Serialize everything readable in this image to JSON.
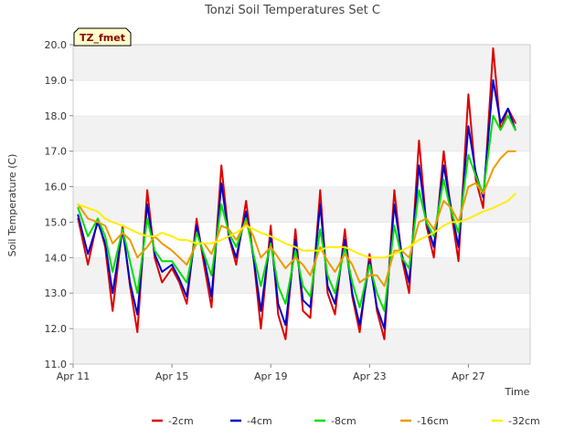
{
  "chart_data": {
    "type": "line",
    "title": "Tonzi Soil Temperatures Set C",
    "xlabel": "Time",
    "ylabel": "Soil Temperature (C)",
    "tag": "TZ_fmet",
    "xlim": [
      0,
      18.5
    ],
    "ylim": [
      11.0,
      20.0
    ],
    "y_ticks": [
      "11.0",
      "12.0",
      "13.0",
      "14.0",
      "15.0",
      "16.0",
      "17.0",
      "18.0",
      "19.0",
      "20.0"
    ],
    "x_ticks": [
      {
        "value": 0,
        "label": "Apr 11"
      },
      {
        "value": 4,
        "label": "Apr 15"
      },
      {
        "value": 8,
        "label": "Apr 19"
      },
      {
        "value": 12,
        "label": "Apr 23"
      },
      {
        "value": 16,
        "label": "Apr 27"
      }
    ],
    "legend_placement": "bottom",
    "grid": true,
    "x": [
      0.2,
      0.6,
      1.0,
      1.3,
      1.6,
      2.0,
      2.3,
      2.6,
      3.0,
      3.3,
      3.6,
      4.0,
      4.3,
      4.6,
      5.0,
      5.3,
      5.6,
      6.0,
      6.3,
      6.6,
      7.0,
      7.3,
      7.6,
      8.0,
      8.3,
      8.6,
      9.0,
      9.3,
      9.6,
      10.0,
      10.3,
      10.6,
      11.0,
      11.3,
      11.6,
      12.0,
      12.3,
      12.6,
      13.0,
      13.3,
      13.6,
      14.0,
      14.3,
      14.6,
      15.0,
      15.3,
      15.6,
      16.0,
      16.3,
      16.6,
      17.0,
      17.3,
      17.6,
      17.9
    ],
    "series": [
      {
        "name": "-2cm",
        "color": "#dd0000",
        "values": [
          15.1,
          13.8,
          15.1,
          14.3,
          12.5,
          14.9,
          13.2,
          11.9,
          15.9,
          14.0,
          13.3,
          13.7,
          13.3,
          12.7,
          15.1,
          13.8,
          12.6,
          16.6,
          14.6,
          13.8,
          15.6,
          14.0,
          12.0,
          14.9,
          12.4,
          11.7,
          14.8,
          12.5,
          12.3,
          15.9,
          13.0,
          12.4,
          14.8,
          12.9,
          11.9,
          14.1,
          12.5,
          11.7,
          15.9,
          14.0,
          13.0,
          17.3,
          14.9,
          14.0,
          17.0,
          15.3,
          13.9,
          18.6,
          16.2,
          15.4,
          19.9,
          17.6,
          18.2,
          17.8
        ]
      },
      {
        "name": "-4cm",
        "color": "#0000cc",
        "values": [
          15.2,
          14.1,
          15.0,
          14.4,
          13.0,
          14.8,
          13.3,
          12.4,
          15.5,
          14.1,
          13.6,
          13.8,
          13.4,
          12.9,
          14.9,
          14.0,
          12.9,
          16.1,
          14.6,
          14.0,
          15.3,
          14.0,
          12.5,
          14.6,
          12.7,
          12.1,
          14.5,
          12.8,
          12.6,
          15.5,
          13.2,
          12.7,
          14.5,
          13.0,
          12.1,
          13.9,
          12.6,
          12.0,
          15.5,
          14.1,
          13.3,
          16.6,
          15.0,
          14.3,
          16.6,
          15.4,
          14.3,
          17.7,
          16.4,
          15.7,
          19.0,
          17.8,
          18.2,
          17.6
        ]
      },
      {
        "name": "-8cm",
        "color": "#00dd00",
        "values": [
          15.4,
          14.6,
          15.1,
          14.6,
          13.6,
          14.8,
          13.9,
          13.0,
          15.1,
          14.2,
          13.9,
          13.9,
          13.6,
          13.3,
          14.7,
          14.1,
          13.5,
          15.5,
          14.7,
          14.3,
          15.1,
          14.1,
          13.2,
          14.4,
          13.2,
          12.7,
          14.2,
          13.2,
          12.9,
          14.8,
          13.5,
          13.0,
          14.3,
          13.3,
          12.6,
          13.8,
          13.0,
          12.5,
          14.9,
          14.0,
          13.7,
          15.9,
          15.0,
          14.6,
          16.2,
          15.3,
          14.7,
          16.9,
          16.3,
          15.8,
          18.0,
          17.6,
          18.0,
          17.6
        ]
      },
      {
        "name": "-16cm",
        "color": "#ee9900",
        "values": [
          15.5,
          15.1,
          15.0,
          14.9,
          14.4,
          14.7,
          14.5,
          14.0,
          14.3,
          14.6,
          14.4,
          14.2,
          14.0,
          13.8,
          14.4,
          14.4,
          14.1,
          14.9,
          14.8,
          14.5,
          15.0,
          14.6,
          14.0,
          14.3,
          14.0,
          13.7,
          14.0,
          13.8,
          13.5,
          14.3,
          13.9,
          13.6,
          14.1,
          13.8,
          13.3,
          13.5,
          13.5,
          13.2,
          14.2,
          14.2,
          14.0,
          15.0,
          15.1,
          14.8,
          15.6,
          15.4,
          15.0,
          16.0,
          16.1,
          15.8,
          16.5,
          16.8,
          17.0,
          17.0
        ]
      },
      {
        "name": "-32cm",
        "color": "#ffee00",
        "values": [
          15.5,
          15.4,
          15.3,
          15.1,
          15.0,
          14.9,
          14.8,
          14.7,
          14.6,
          14.6,
          14.7,
          14.6,
          14.5,
          14.5,
          14.4,
          14.4,
          14.4,
          14.5,
          14.6,
          14.7,
          14.9,
          14.8,
          14.7,
          14.6,
          14.5,
          14.4,
          14.3,
          14.2,
          14.2,
          14.2,
          14.3,
          14.3,
          14.3,
          14.2,
          14.1,
          14.0,
          14.0,
          14.0,
          14.1,
          14.2,
          14.3,
          14.5,
          14.6,
          14.7,
          14.9,
          15.0,
          15.0,
          15.1,
          15.2,
          15.3,
          15.4,
          15.5,
          15.6,
          15.8
        ]
      }
    ]
  }
}
